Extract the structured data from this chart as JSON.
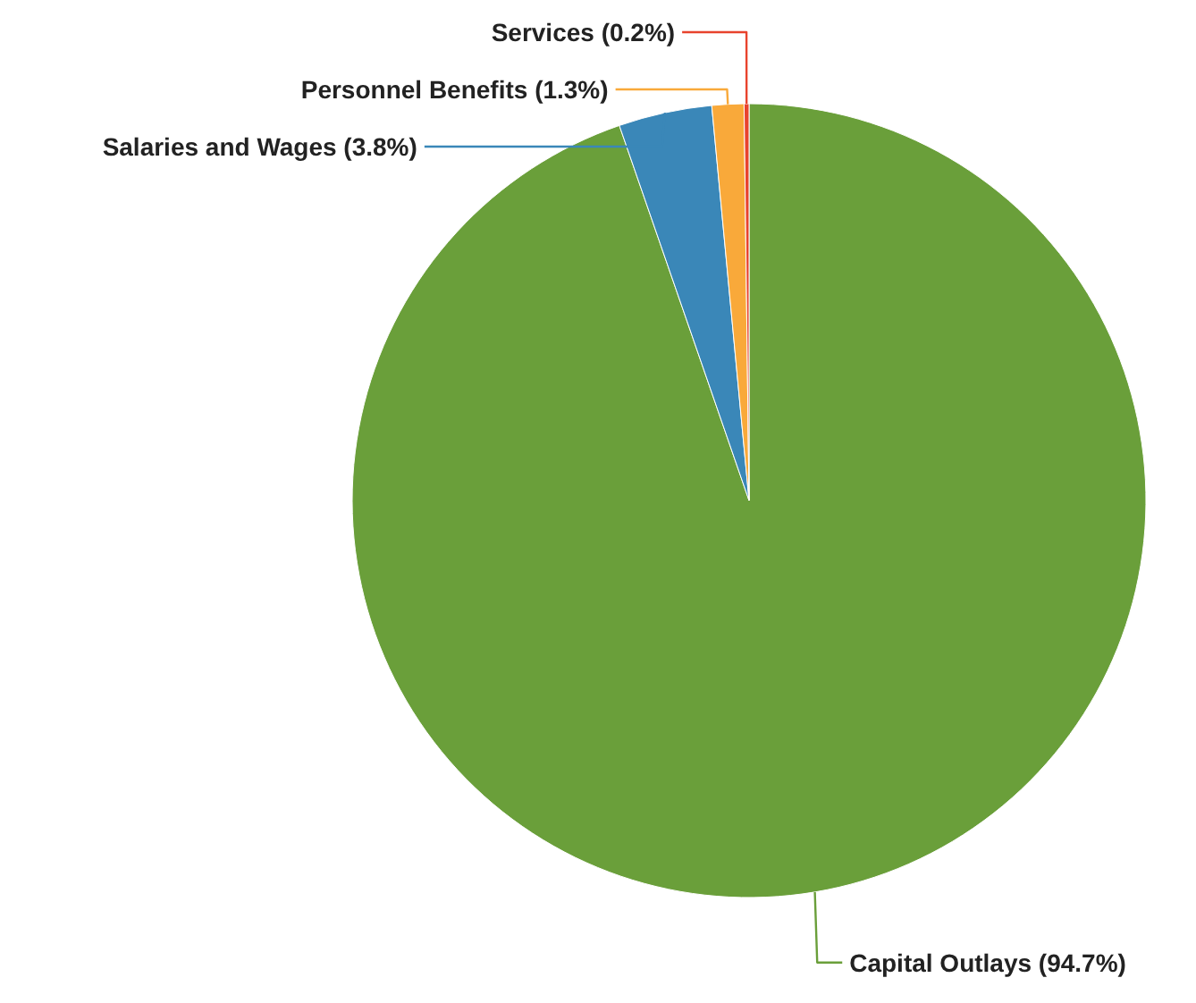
{
  "chart_data": {
    "type": "pie",
    "categories": [
      "Capital Outlays",
      "Salaries and Wages",
      "Personnel Benefits",
      "Services"
    ],
    "values": [
      94.7,
      3.8,
      1.3,
      0.2
    ],
    "colors": [
      "#6a9f3a",
      "#3a87b8",
      "#f9a93a",
      "#e8432d"
    ],
    "value_labels": [
      "(94.7%)",
      "(3.8%)",
      "(1.3%)",
      "(0.2%)"
    ],
    "legend": false
  }
}
